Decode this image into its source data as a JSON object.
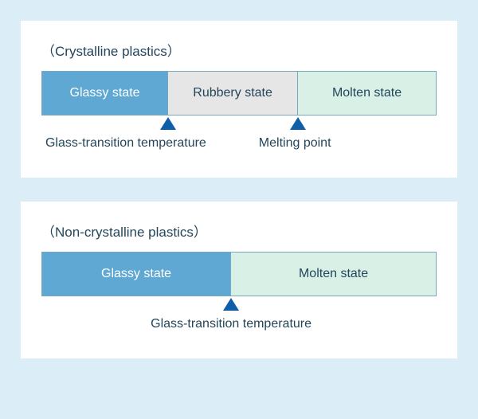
{
  "colors": {
    "outer_bg": "#dbeef8",
    "panel_bg": "#ffffff",
    "bar_border": "#7aa7bf",
    "triangle": "#0f5ea8",
    "title_text": "#23465a",
    "label_text": "#23465a",
    "glassy_bg": "#5fa8d3",
    "glassy_text": "#ffffff",
    "rubbery_bg": "#e6e6e6",
    "rubbery_text": "#23465a",
    "molten_bg": "#d9f0e7",
    "molten_text": "#23465a"
  },
  "typography": {
    "title_fontsize": 17,
    "segment_fontsize": 16,
    "label_fontsize": 16
  },
  "panels": [
    {
      "title": "（Crystalline plastics）",
      "segments": [
        {
          "label": "Glassy state",
          "width_pct": 32,
          "bg": "#5fa8d3",
          "fg": "#ffffff"
        },
        {
          "label": "Rubbery state",
          "width_pct": 33,
          "bg": "#e6e6e6",
          "fg": "#23465a"
        },
        {
          "label": "Molten state",
          "width_pct": 35,
          "bg": "#d9f0e7",
          "fg": "#23465a"
        }
      ],
      "markers": [
        {
          "position_pct": 32,
          "label": "Glass-transition temperature",
          "label_left_pct": 1,
          "label_align": "left"
        },
        {
          "position_pct": 65,
          "label": "Melting point",
          "label_left_pct": 55,
          "label_align": "left"
        }
      ]
    },
    {
      "title": "（Non-crystalline plastics）",
      "segments": [
        {
          "label": "Glassy state",
          "width_pct": 48,
          "bg": "#5fa8d3",
          "fg": "#ffffff"
        },
        {
          "label": "Molten state",
          "width_pct": 52,
          "bg": "#d9f0e7",
          "fg": "#23465a"
        }
      ],
      "markers": [
        {
          "position_pct": 48,
          "label": "Glass-transition temperature",
          "label_left_pct": 48,
          "label_align": "center"
        }
      ]
    }
  ]
}
